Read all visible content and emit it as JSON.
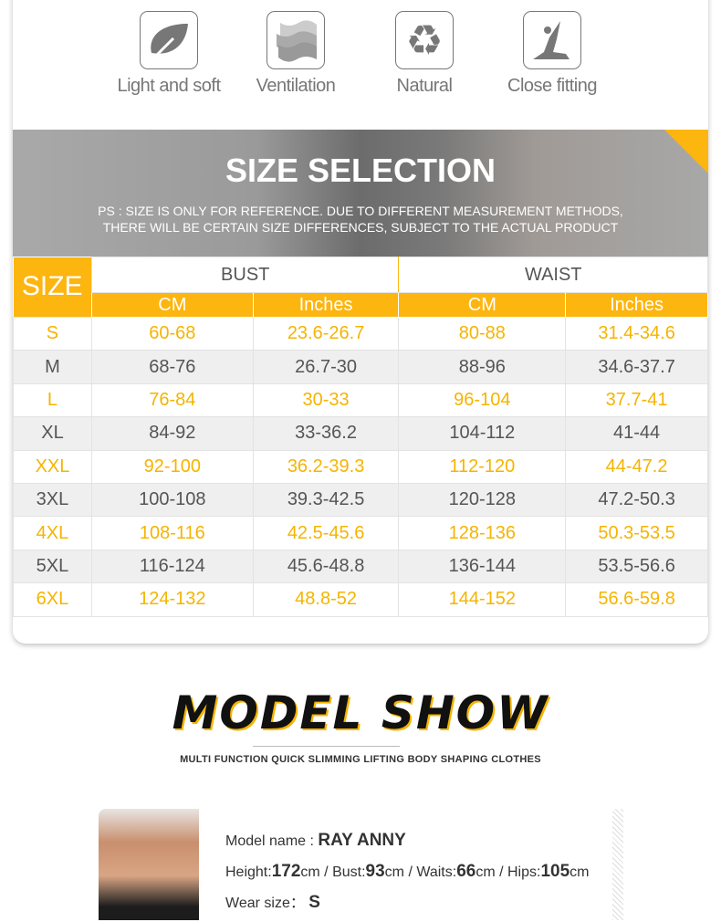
{
  "features": [
    {
      "label": "Light and soft",
      "icon": "leaf-icon"
    },
    {
      "label": "Ventilation",
      "icon": "waves-icon"
    },
    {
      "label": "Natural",
      "icon": "recycle-icon"
    },
    {
      "label": "Close fitting",
      "icon": "yoga-icon"
    }
  ],
  "banner": {
    "title": "SIZE SELECTION",
    "note_line1": "PS : SIZE IS ONLY FOR REFERENCE. DUE TO DIFFERENT MEASUREMENT METHODS,",
    "note_line2": "THERE WILL BE CERTAIN SIZE DIFFERENCES, SUBJECT TO THE ACTUAL PRODUCT"
  },
  "table": {
    "size_label": "SIZE",
    "bust": "BUST",
    "waist": "WAIST",
    "cm": "CM",
    "inches": "Inches",
    "rows": [
      [
        "S",
        "60-68",
        "23.6-26.7",
        "80-88",
        "31.4-34.6"
      ],
      [
        "M",
        "68-76",
        "26.7-30",
        "88-96",
        "34.6-37.7"
      ],
      [
        "L",
        "76-84",
        "30-33",
        "96-104",
        "37.7-41"
      ],
      [
        "XL",
        "84-92",
        "33-36.2",
        "104-112",
        "41-44"
      ],
      [
        "XXL",
        "92-100",
        "36.2-39.3",
        "112-120",
        "44-47.2"
      ],
      [
        "3XL",
        "100-108",
        "39.3-42.5",
        "120-128",
        "47.2-50.3"
      ],
      [
        "4XL",
        "108-116",
        "42.5-45.6",
        "128-136",
        "50.3-53.5"
      ],
      [
        "5XL",
        "116-124",
        "45.6-48.8",
        "136-144",
        "53.5-56.6"
      ],
      [
        "6XL",
        "124-132",
        "48.8-52",
        "144-152",
        "56.6-59.8"
      ]
    ]
  },
  "model_show": {
    "title": "MODEL SHOW",
    "subtitle": "MULTI FUNCTION QUICK SLIMMING LIFTING BODY SHAPING CLOTHES"
  },
  "model": {
    "name_label": "Model name : ",
    "name": "RAY ANNY",
    "height_label": "Height:",
    "height": "172",
    "bust_label": "cm / Bust:",
    "bust": "93",
    "waist_label": "cm / Waits:",
    "waist": "66",
    "hips_label": "cm / Hips:",
    "hips": "105",
    "unit": "cm",
    "wear_label": "Wear size： ",
    "wear": "S"
  },
  "colors": {
    "accent": "#fdb50f",
    "text": "#555555"
  }
}
